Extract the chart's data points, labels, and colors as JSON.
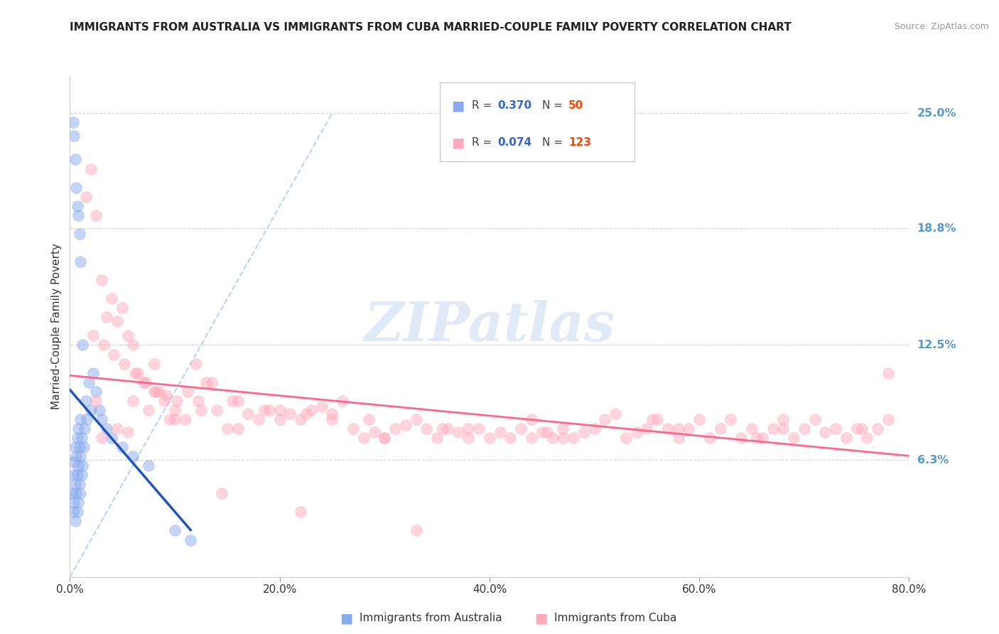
{
  "title": "IMMIGRANTS FROM AUSTRALIA VS IMMIGRANTS FROM CUBA MARRIED-COUPLE FAMILY POVERTY CORRELATION CHART",
  "source": "Source: ZipAtlas.com",
  "ylabel": "Married-Couple Family Poverty",
  "x_tick_labels": [
    "0.0%",
    "20.0%",
    "40.0%",
    "60.0%",
    "80.0%"
  ],
  "x_tick_vals": [
    0.0,
    20.0,
    40.0,
    60.0,
    80.0
  ],
  "y_tick_labels": [
    "6.3%",
    "12.5%",
    "18.8%",
    "25.0%"
  ],
  "y_tick_vals": [
    6.3,
    12.5,
    18.8,
    25.0
  ],
  "xlim": [
    0.0,
    80.0
  ],
  "ylim": [
    0.0,
    27.0
  ],
  "australia_color": "#88aaee",
  "cuba_color": "#ffaabb",
  "australia_line_color": "#2255bb",
  "cuba_line_color": "#ff6688",
  "diagonal_color": "#aaccff",
  "watermark": "ZIPatlas",
  "watermark_color": "#c8d8f0",
  "aus_x": [
    0.2,
    0.3,
    0.3,
    0.4,
    0.4,
    0.5,
    0.5,
    0.5,
    0.6,
    0.6,
    0.7,
    0.7,
    0.7,
    0.8,
    0.8,
    0.8,
    0.9,
    0.9,
    1.0,
    1.0,
    1.0,
    1.1,
    1.1,
    1.2,
    1.3,
    1.4,
    1.5,
    1.6,
    1.8,
    2.0,
    2.2,
    2.5,
    2.8,
    3.0,
    3.5,
    4.0,
    5.0,
    6.0,
    7.5,
    10.0,
    11.5,
    0.3,
    0.4,
    0.5,
    0.6,
    0.7,
    0.8,
    0.9,
    1.0,
    1.2
  ],
  "aus_y": [
    4.5,
    3.5,
    5.5,
    4.0,
    6.2,
    3.0,
    5.0,
    7.0,
    4.5,
    6.5,
    3.5,
    5.5,
    7.5,
    4.0,
    6.0,
    8.0,
    5.0,
    7.0,
    4.5,
    6.5,
    8.5,
    5.5,
    7.5,
    6.0,
    7.0,
    8.0,
    9.5,
    8.5,
    10.5,
    9.0,
    11.0,
    10.0,
    9.0,
    8.5,
    8.0,
    7.5,
    7.0,
    6.5,
    6.0,
    2.5,
    2.0,
    24.5,
    23.8,
    22.5,
    21.0,
    20.0,
    19.5,
    18.5,
    17.0,
    12.5
  ],
  "cuba_x": [
    1.5,
    2.0,
    2.5,
    3.0,
    3.5,
    4.0,
    4.5,
    5.0,
    5.5,
    6.0,
    6.5,
    7.0,
    7.5,
    8.0,
    8.5,
    9.0,
    10.0,
    11.0,
    12.0,
    13.0,
    14.0,
    15.0,
    16.0,
    17.0,
    18.0,
    19.0,
    20.0,
    21.0,
    22.0,
    23.0,
    24.0,
    25.0,
    26.0,
    27.0,
    28.0,
    29.0,
    30.0,
    31.0,
    32.0,
    33.0,
    34.0,
    35.0,
    36.0,
    37.0,
    38.0,
    39.0,
    40.0,
    41.0,
    42.0,
    43.0,
    44.0,
    45.0,
    46.0,
    47.0,
    48.0,
    49.0,
    50.0,
    51.0,
    52.0,
    53.0,
    54.0,
    55.0,
    56.0,
    57.0,
    58.0,
    59.0,
    60.0,
    61.0,
    62.0,
    63.0,
    64.0,
    65.0,
    66.0,
    67.0,
    68.0,
    69.0,
    70.0,
    71.0,
    72.0,
    73.0,
    74.0,
    75.0,
    76.0,
    77.0,
    78.0,
    2.2,
    3.2,
    4.2,
    5.2,
    6.2,
    7.2,
    8.2,
    9.2,
    10.2,
    11.2,
    12.2,
    13.5,
    15.5,
    18.5,
    22.5,
    28.5,
    35.5,
    45.5,
    55.5,
    65.5,
    75.5,
    3.0,
    4.5,
    6.0,
    8.0,
    10.0,
    12.5,
    16.0,
    20.0,
    25.0,
    30.0,
    38.0,
    47.0,
    58.0,
    68.0,
    78.0,
    2.5,
    5.5,
    9.5,
    14.5,
    22.0,
    33.0,
    44.0
  ],
  "cuba_y": [
    20.5,
    22.0,
    19.5,
    16.0,
    14.0,
    15.0,
    13.8,
    14.5,
    13.0,
    12.5,
    11.0,
    10.5,
    9.0,
    11.5,
    10.0,
    9.5,
    9.0,
    8.5,
    11.5,
    10.5,
    9.0,
    8.0,
    9.5,
    8.8,
    8.5,
    9.0,
    8.5,
    8.8,
    8.5,
    9.0,
    9.2,
    8.8,
    9.5,
    8.0,
    7.5,
    7.8,
    7.5,
    8.0,
    8.2,
    8.5,
    8.0,
    7.5,
    8.0,
    7.8,
    7.5,
    8.0,
    7.5,
    7.8,
    7.5,
    8.0,
    7.5,
    7.8,
    7.5,
    8.0,
    7.5,
    7.8,
    8.0,
    8.5,
    8.8,
    7.5,
    7.8,
    8.0,
    8.5,
    8.0,
    7.5,
    8.0,
    8.5,
    7.5,
    8.0,
    8.5,
    7.5,
    8.0,
    7.5,
    8.0,
    8.5,
    7.5,
    8.0,
    8.5,
    7.8,
    8.0,
    7.5,
    8.0,
    7.5,
    8.0,
    8.5,
    13.0,
    12.5,
    12.0,
    11.5,
    11.0,
    10.5,
    10.0,
    9.8,
    9.5,
    10.0,
    9.5,
    10.5,
    9.5,
    9.0,
    8.8,
    8.5,
    8.0,
    7.8,
    8.5,
    7.5,
    8.0,
    7.5,
    8.0,
    9.5,
    10.0,
    8.5,
    9.0,
    8.0,
    9.0,
    8.5,
    7.5,
    8.0,
    7.5,
    8.0,
    8.0,
    11.0,
    9.5,
    7.8,
    8.5,
    4.5,
    3.5,
    2.5,
    8.5
  ]
}
